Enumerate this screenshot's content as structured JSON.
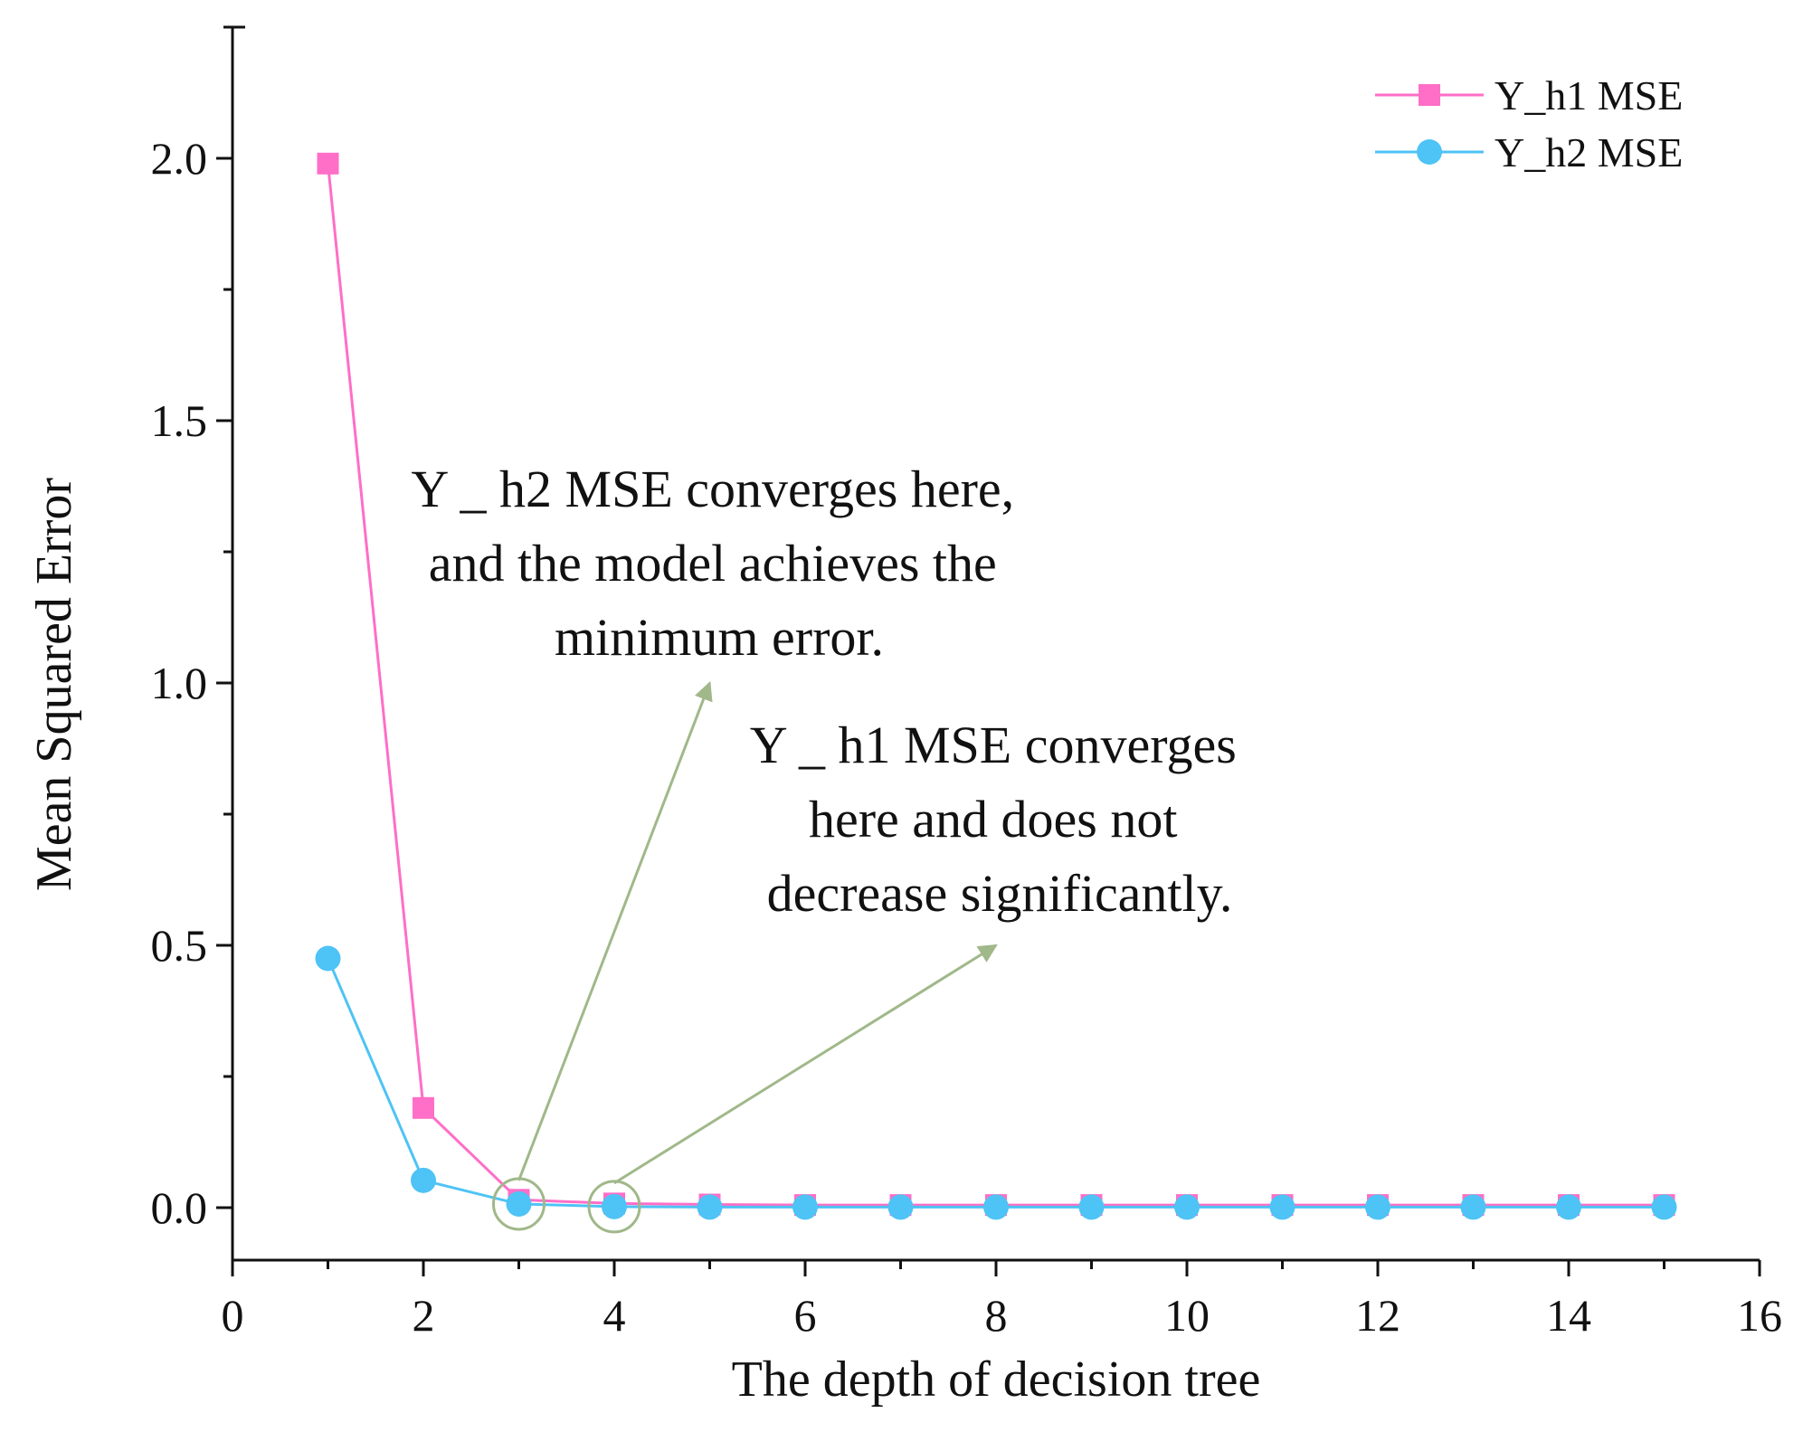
{
  "chart_data": {
    "type": "line",
    "title": "",
    "xlabel": "The depth of decision tree",
    "ylabel": "Mean Squared Error",
    "xlim": [
      0,
      16
    ],
    "ylim": [
      -0.1,
      2.25
    ],
    "x_ticks": [
      0,
      2,
      4,
      6,
      8,
      10,
      12,
      14,
      16
    ],
    "x_tick_labels": [
      "0",
      "2",
      "4",
      "6",
      "8",
      "10",
      "12",
      "14",
      "16"
    ],
    "y_ticks": [
      0.0,
      0.5,
      1.0,
      1.5,
      2.0
    ],
    "y_tick_labels": [
      "0.0",
      "0.5",
      "1.0",
      "1.5",
      "2.0"
    ],
    "grid": false,
    "legend_position": "top-right",
    "x": [
      1,
      2,
      3,
      4,
      5,
      6,
      7,
      8,
      9,
      10,
      11,
      12,
      13,
      14,
      15
    ],
    "series": [
      {
        "name": "Y_h1 MSE",
        "marker": "square",
        "color": "#ff6ec7",
        "values": [
          1.99,
          0.19,
          0.015,
          0.008,
          0.006,
          0.005,
          0.005,
          0.005,
          0.005,
          0.005,
          0.005,
          0.005,
          0.005,
          0.005,
          0.005
        ]
      },
      {
        "name": "Y_h2 MSE",
        "marker": "circle",
        "color": "#4ec3f5",
        "values": [
          0.475,
          0.052,
          0.007,
          0.002,
          0.001,
          0.001,
          0.001,
          0.001,
          0.001,
          0.001,
          0.001,
          0.001,
          0.001,
          0.001,
          0.001
        ]
      }
    ],
    "annotations": [
      {
        "id": "h2",
        "lines": [
          "Y _ h2 MSE converges here,",
          "and the model achieves the",
          "minimum error."
        ],
        "point": [
          3,
          0.007
        ],
        "arrow_to": [
          5,
          1.0
        ]
      },
      {
        "id": "h1",
        "lines": [
          "Y _ h1 MSE converges",
          "here and does not",
          "decrease significantly."
        ],
        "point": [
          4,
          0.002
        ],
        "arrow_to": [
          8,
          0.5
        ]
      }
    ],
    "annotation_color": "#a0b88a"
  }
}
